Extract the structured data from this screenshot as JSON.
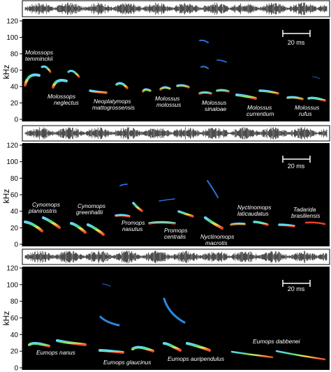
{
  "axis": {
    "ylabel": "kHz",
    "ticks": [
      "0",
      "20",
      "40",
      "60",
      "80",
      "100",
      "120"
    ]
  },
  "scale_bar_label": "20 ms",
  "panels": [
    {
      "id": "top",
      "species": [
        {
          "line1": "Molossops",
          "line2": "temminckii"
        },
        {
          "line1": "Molossops",
          "line2": "neglectus"
        },
        {
          "line1": "Neoplatymops",
          "line2": "mattogrossensis"
        },
        {
          "line1": "Molossus",
          "line2": "molossus"
        },
        {
          "line1": "Molossus",
          "line2": "sinaloae"
        },
        {
          "line1": "Molossus",
          "line2": "currentium"
        },
        {
          "line1": "Molossus",
          "line2": "rufus"
        }
      ]
    },
    {
      "id": "middle",
      "species": [
        {
          "line1": "Cynomops",
          "line2": "planirostris"
        },
        {
          "line1": "Cynomops",
          "line2": "greenhallii"
        },
        {
          "line1": "Promops",
          "line2": "nasutus"
        },
        {
          "line1": "Promops",
          "line2": "centralis"
        },
        {
          "line1": "Nyctinomops",
          "line2": "macrotis"
        },
        {
          "line1": "Nyctinomops",
          "line2": "laticaudatus"
        },
        {
          "line1": "Tadarida",
          "line2": "brasiliensis"
        }
      ]
    },
    {
      "id": "bottom",
      "species": [
        {
          "line1": "Eumops nanus",
          "line2": ""
        },
        {
          "line1": "Eumops glaucinus",
          "line2": ""
        },
        {
          "line1": "Eumops auripendulus",
          "line2": ""
        },
        {
          "line1": "Eumops dabbenei",
          "line2": ""
        }
      ]
    }
  ]
}
